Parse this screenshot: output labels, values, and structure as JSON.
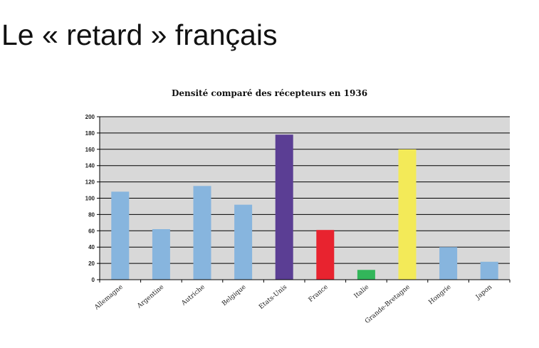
{
  "slide": {
    "title": "Le « retard » français"
  },
  "colors": {
    "default_bar": "#87b5de",
    "plot_background": "#d8d8d8",
    "gridline": "#000000"
  },
  "chart_data": {
    "type": "bar",
    "title": "Densité comparé des récepteurs en 1936",
    "xlabel": "",
    "ylabel": "",
    "ylim": [
      0,
      200
    ],
    "yticks": [
      0,
      20,
      40,
      60,
      80,
      100,
      120,
      140,
      160,
      180,
      200
    ],
    "grid": true,
    "legend": "none",
    "categories": [
      "Allemagne",
      "Argentine",
      "Autriche",
      "Belgique",
      "Etats-Unis",
      "France",
      "Italie",
      "Grande-Bretagne",
      "Hongrie",
      "Japon"
    ],
    "values": [
      108,
      62,
      115,
      92,
      178,
      61,
      12,
      160,
      40,
      22
    ],
    "bar_colors": [
      "#87b5de",
      "#87b5de",
      "#87b5de",
      "#87b5de",
      "#5b3e94",
      "#e8232f",
      "#32b65a",
      "#f3ea58",
      "#87b5de",
      "#87b5de"
    ]
  }
}
